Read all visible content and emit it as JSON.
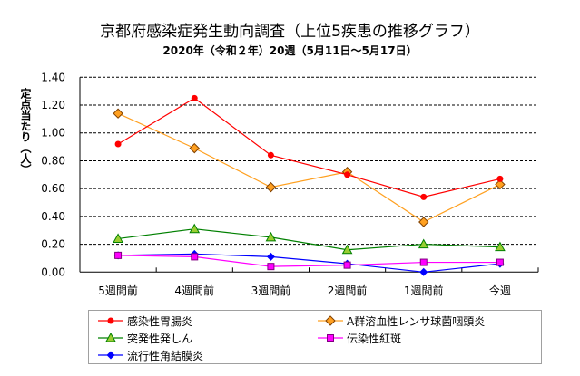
{
  "chart_data": {
    "type": "line",
    "title": "京都府感染症発生動向調査（上位5疾患の推移グラフ）",
    "subtitle": "2020年（令和２年）20週（5月11日～5月17日）",
    "xlabel": "",
    "ylabel": "定点当たり（人）",
    "categories": [
      "5週間前",
      "4週間前",
      "3週間前",
      "2週間前",
      "1週間前",
      "今週"
    ],
    "ylim": [
      0,
      1.4
    ],
    "yticks": [
      "0.00",
      "0.20",
      "0.40",
      "0.60",
      "0.80",
      "1.00",
      "1.20",
      "1.40"
    ],
    "grid": true,
    "legend_position": "bottom",
    "series": [
      {
        "name": "感染性胃腸炎",
        "color": "#ff0000",
        "marker": "circle",
        "values": [
          0.92,
          1.25,
          0.84,
          0.7,
          0.54,
          0.67
        ]
      },
      {
        "name": "A群溶血性レンサ球菌咽頭炎",
        "color": "#ffa020",
        "marker": "diamond",
        "values": [
          1.14,
          0.89,
          0.61,
          0.72,
          0.36,
          0.63
        ]
      },
      {
        "name": "突発性発しん",
        "color": "#008000",
        "marker": "triangle",
        "values": [
          0.24,
          0.31,
          0.25,
          0.16,
          0.2,
          0.18
        ]
      },
      {
        "name": "伝染性紅斑",
        "color": "#ff00ff",
        "marker": "square",
        "values": [
          0.12,
          0.11,
          0.04,
          0.05,
          0.07,
          0.07
        ]
      },
      {
        "name": "流行性角結膜炎",
        "color": "#0000ff",
        "marker": "diamond-small",
        "values": [
          0.12,
          0.13,
          0.11,
          0.06,
          0.0,
          0.06
        ]
      }
    ]
  }
}
